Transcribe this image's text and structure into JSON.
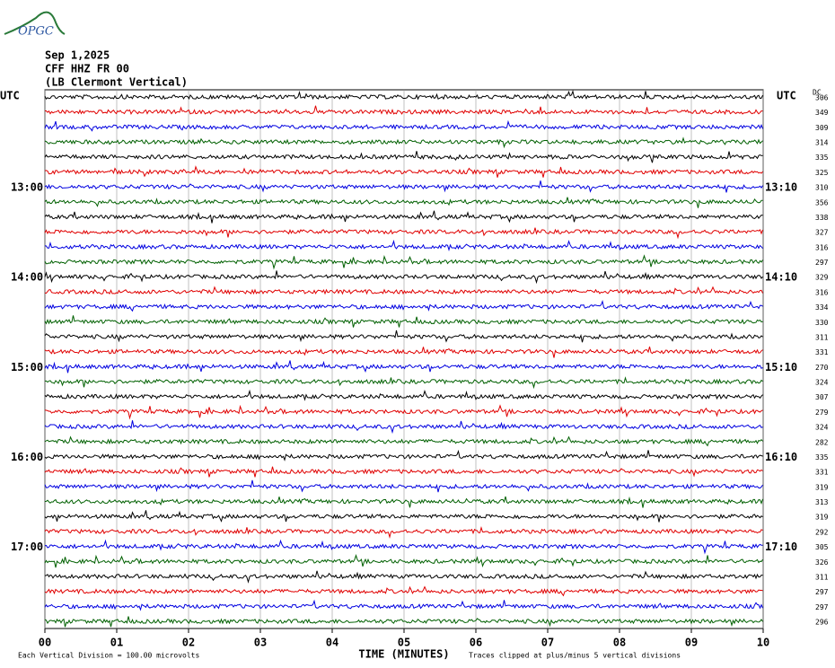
{
  "header": {
    "logo": "OPGC",
    "date": "Sep 1,2025",
    "station": "CFF HHZ FR 00",
    "location": "(LB  Clermont Vertical)"
  },
  "chart_data": {
    "type": "helicorder",
    "left_header": "UTC",
    "right_header": "UTC",
    "dc_header": "DC",
    "colors": [
      "#000000",
      "#e00000",
      "#0000e0",
      "#006000"
    ],
    "rows": [
      {
        "left": null,
        "right": null,
        "dc": 306
      },
      {
        "left": null,
        "right": null,
        "dc": 349
      },
      {
        "left": null,
        "right": null,
        "dc": 309
      },
      {
        "left": null,
        "right": null,
        "dc": 314
      },
      {
        "left": null,
        "right": null,
        "dc": 335
      },
      {
        "left": null,
        "right": null,
        "dc": 325
      },
      {
        "left": "13:00",
        "right": "13:10",
        "dc": 310
      },
      {
        "left": null,
        "right": null,
        "dc": 356
      },
      {
        "left": null,
        "right": null,
        "dc": 338
      },
      {
        "left": null,
        "right": null,
        "dc": 327
      },
      {
        "left": null,
        "right": null,
        "dc": 316
      },
      {
        "left": null,
        "right": null,
        "dc": 297
      },
      {
        "left": "14:00",
        "right": "14:10",
        "dc": 329
      },
      {
        "left": null,
        "right": null,
        "dc": 316
      },
      {
        "left": null,
        "right": null,
        "dc": 334
      },
      {
        "left": null,
        "right": null,
        "dc": 330
      },
      {
        "left": null,
        "right": null,
        "dc": 311
      },
      {
        "left": null,
        "right": null,
        "dc": 331
      },
      {
        "left": "15:00",
        "right": "15:10",
        "dc": 270
      },
      {
        "left": null,
        "right": null,
        "dc": 324
      },
      {
        "left": null,
        "right": null,
        "dc": 307
      },
      {
        "left": null,
        "right": null,
        "dc": 279
      },
      {
        "left": null,
        "right": null,
        "dc": 324
      },
      {
        "left": null,
        "right": null,
        "dc": 282
      },
      {
        "left": "16:00",
        "right": "16:10",
        "dc": 335
      },
      {
        "left": null,
        "right": null,
        "dc": 331
      },
      {
        "left": null,
        "right": null,
        "dc": 319
      },
      {
        "left": null,
        "right": null,
        "dc": 313
      },
      {
        "left": null,
        "right": null,
        "dc": 319
      },
      {
        "left": null,
        "right": null,
        "dc": 292
      },
      {
        "left": "17:00",
        "right": "17:10",
        "dc": 305
      },
      {
        "left": null,
        "right": null,
        "dc": 326
      },
      {
        "left": null,
        "right": null,
        "dc": 311
      },
      {
        "left": null,
        "right": null,
        "dc": 297
      },
      {
        "left": null,
        "right": null,
        "dc": 297
      },
      {
        "left": null,
        "right": null,
        "dc": 296
      }
    ],
    "xlabel": "TIME (MINUTES)",
    "xlim": [
      0,
      10
    ],
    "xticks": [
      {
        "value": 0,
        "label": "00"
      },
      {
        "value": 1,
        "label": "01"
      },
      {
        "value": 2,
        "label": "02"
      },
      {
        "value": 3,
        "label": "03"
      },
      {
        "value": 4,
        "label": "04"
      },
      {
        "value": 5,
        "label": "05"
      },
      {
        "value": 6,
        "label": "06"
      },
      {
        "value": 7,
        "label": "07"
      },
      {
        "value": 8,
        "label": "08"
      },
      {
        "value": 9,
        "label": "09"
      },
      10
    ],
    "scale_note": "Each Vertical Division =  100.00 microvolts",
    "clip_note": "Traces clipped at plus/minus 5 vertical divisions"
  }
}
